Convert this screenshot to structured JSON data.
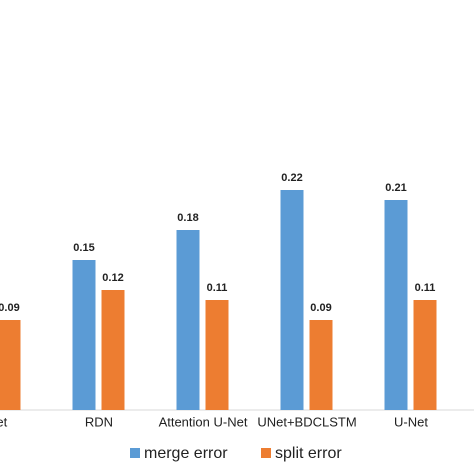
{
  "chart_data": {
    "type": "bar",
    "categories": [
      "-Net",
      "RDN",
      "Attention U-Net",
      "UNet+BDCLSTM",
      "U-Net"
    ],
    "series": [
      {
        "name": "merge error",
        "color": "#5b9bd5",
        "values": [
          null,
          0.15,
          0.18,
          0.22,
          0.21
        ]
      },
      {
        "name": "split error",
        "color": "#ed7d31",
        "values": [
          0.09,
          0.12,
          0.11,
          0.09,
          0.11
        ]
      }
    ],
    "ylim": [
      0,
      0.41
    ],
    "legend": "bottom"
  }
}
